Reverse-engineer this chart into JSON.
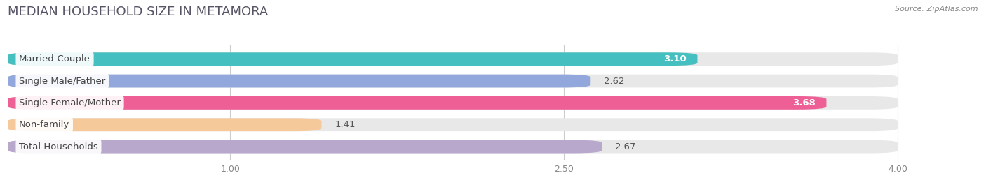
{
  "title": "MEDIAN HOUSEHOLD SIZE IN METAMORA",
  "source": "Source: ZipAtlas.com",
  "categories": [
    "Married-Couple",
    "Single Male/Father",
    "Single Female/Mother",
    "Non-family",
    "Total Households"
  ],
  "values": [
    3.1,
    2.62,
    3.68,
    1.41,
    2.67
  ],
  "bar_colors": [
    "#45BFBF",
    "#92A8DC",
    "#EE5F96",
    "#F5C99A",
    "#B8A8CC"
  ],
  "xlim": [
    0.0,
    4.3
  ],
  "xmin": 0.0,
  "xmax": 4.0,
  "xticks": [
    1.0,
    2.5,
    4.0
  ],
  "title_fontsize": 13,
  "label_fontsize": 9.5,
  "value_fontsize": 9.5,
  "background_color": "#ffffff",
  "bar_bg_color": "#e8e8e8",
  "value_inside": [
    true,
    false,
    true,
    false,
    false
  ]
}
